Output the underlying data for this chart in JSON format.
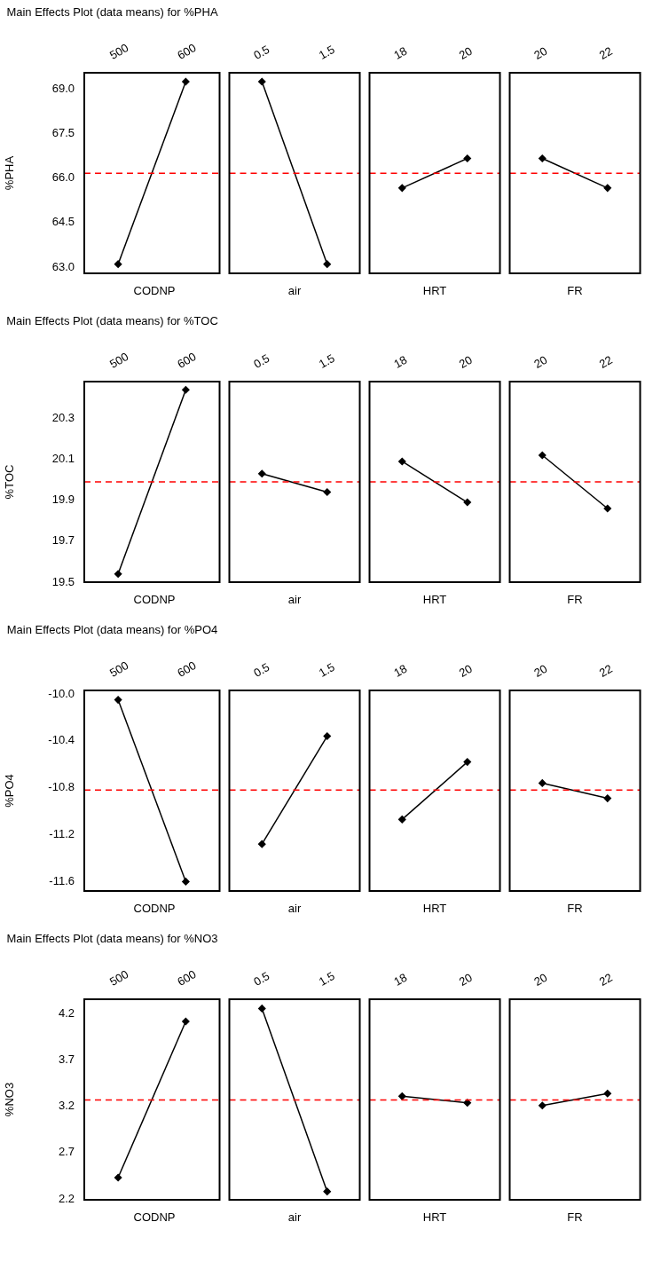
{
  "chart_data": [
    {
      "type": "line",
      "title": "Main Effects Plot (data means) for %PHA",
      "ylabel": "%PHA",
      "xlabel": "CODNP",
      "categories": [
        "500",
        "600"
      ],
      "values": [
        63.1,
        69.26
      ],
      "color": "#000000",
      "marker": "diamond",
      "ylim": [
        62.79,
        69.56
      ],
      "yticks": [
        {
          "value": 63,
          "label": "63.0"
        },
        {
          "value": 64.5,
          "label": "64.5"
        },
        {
          "value": 66,
          "label": "66.0"
        },
        {
          "value": 67.5,
          "label": "67.5"
        },
        {
          "value": 69,
          "label": "69.0"
        }
      ],
      "ref_lines": [
        {
          "axis": "y",
          "value": 66.17,
          "color": "#ff0000",
          "line_style": "dashed"
        }
      ]
    },
    {
      "type": "line",
      "xlabel": "air",
      "categories": [
        "0.5",
        "1.5"
      ],
      "values": [
        69.26,
        63.1
      ],
      "color": "#000000",
      "marker": "diamond",
      "ylim": [
        62.79,
        69.56
      ],
      "tick_labels": "x",
      "ref_lines": [
        {
          "axis": "y",
          "value": 66.17,
          "color": "#ff0000",
          "line_style": "dashed"
        }
      ]
    },
    {
      "type": "line",
      "xlabel": "HRT",
      "categories": [
        "18",
        "20"
      ],
      "values": [
        65.67,
        66.67
      ],
      "color": "#000000",
      "marker": "diamond",
      "ylim": [
        62.79,
        69.56
      ],
      "tick_labels": "x",
      "ref_lines": [
        {
          "axis": "y",
          "value": 66.17,
          "color": "#ff0000",
          "line_style": "dashed"
        }
      ]
    },
    {
      "type": "line",
      "xlabel": "FR",
      "categories": [
        "20",
        "22"
      ],
      "values": [
        66.67,
        65.67
      ],
      "color": "#000000",
      "marker": "diamond",
      "ylim": [
        62.79,
        69.56
      ],
      "tick_labels": "x",
      "ref_lines": [
        {
          "axis": "y",
          "value": 66.17,
          "color": "#ff0000",
          "line_style": "dashed"
        }
      ]
    },
    {
      "type": "line",
      "title": "Main Effects Plot (data means) for %TOC",
      "ylabel": "%TOC",
      "xlabel": "CODNP",
      "categories": [
        "500",
        "600"
      ],
      "values": [
        19.54,
        20.44
      ],
      "color": "#000000",
      "marker": "diamond",
      "ylim": [
        19.5,
        20.48
      ],
      "yticks": [
        {
          "value": 19.5,
          "label": "19.5"
        },
        19.7,
        19.9,
        20.1,
        20.3
      ],
      "ref_lines": [
        {
          "axis": "y",
          "value": 19.99,
          "color": "#ff0000",
          "line_style": "dashed"
        }
      ]
    },
    {
      "type": "line",
      "xlabel": "air",
      "categories": [
        "0.5",
        "1.5"
      ],
      "values": [
        20.03,
        19.94
      ],
      "color": "#000000",
      "marker": "diamond",
      "ylim": [
        19.5,
        20.48
      ],
      "tick_labels": "x",
      "ref_lines": [
        {
          "axis": "y",
          "value": 19.99,
          "color": "#ff0000",
          "line_style": "dashed"
        }
      ]
    },
    {
      "type": "line",
      "xlabel": "HRT",
      "categories": [
        "18",
        "20"
      ],
      "values": [
        20.09,
        19.89
      ],
      "color": "#000000",
      "marker": "diamond",
      "ylim": [
        19.5,
        20.48
      ],
      "tick_labels": "x",
      "ref_lines": [
        {
          "axis": "y",
          "value": 19.99,
          "color": "#ff0000",
          "line_style": "dashed"
        }
      ]
    },
    {
      "type": "line",
      "xlabel": "FR",
      "categories": [
        "20",
        "22"
      ],
      "values": [
        20.12,
        19.86
      ],
      "color": "#000000",
      "marker": "diamond",
      "ylim": [
        19.5,
        20.48
      ],
      "tick_labels": "x",
      "ref_lines": [
        {
          "axis": "y",
          "value": 19.99,
          "color": "#ff0000",
          "line_style": "dashed"
        }
      ]
    },
    {
      "type": "line",
      "title": "Main Effects Plot (data means) for %PO4",
      "ylabel": "%PO4",
      "xlabel": "CODNP",
      "categories": [
        "500",
        "600"
      ],
      "values": [
        -10.05,
        -11.6
      ],
      "color": "#000000",
      "marker": "diamond",
      "ylim": [
        -11.68,
        -9.97
      ],
      "yticks": [
        -11.6,
        -11.2,
        -10.8,
        -10.4,
        {
          "value": -10,
          "label": "-10.0"
        }
      ],
      "ref_lines": [
        {
          "axis": "y",
          "value": -10.82,
          "color": "#ff0000",
          "line_style": "dashed"
        }
      ]
    },
    {
      "type": "line",
      "xlabel": "air",
      "categories": [
        "0.5",
        "1.5"
      ],
      "values": [
        -11.28,
        -10.36
      ],
      "color": "#000000",
      "marker": "diamond",
      "ylim": [
        -11.68,
        -9.97
      ],
      "tick_labels": "x",
      "ref_lines": [
        {
          "axis": "y",
          "value": -10.82,
          "color": "#ff0000",
          "line_style": "dashed"
        }
      ]
    },
    {
      "type": "line",
      "xlabel": "HRT",
      "categories": [
        "18",
        "20"
      ],
      "values": [
        -11.07,
        -10.58
      ],
      "color": "#000000",
      "marker": "diamond",
      "ylim": [
        -11.68,
        -9.97
      ],
      "tick_labels": "x",
      "ref_lines": [
        {
          "axis": "y",
          "value": -10.82,
          "color": "#ff0000",
          "line_style": "dashed"
        }
      ]
    },
    {
      "type": "line",
      "xlabel": "FR",
      "categories": [
        "20",
        "22"
      ],
      "values": [
        -10.76,
        -10.89
      ],
      "color": "#000000",
      "marker": "diamond",
      "ylim": [
        -11.68,
        -9.97
      ],
      "tick_labels": "x",
      "ref_lines": [
        {
          "axis": "y",
          "value": -10.82,
          "color": "#ff0000",
          "line_style": "dashed"
        }
      ]
    },
    {
      "type": "line",
      "title": "Main Effects Plot (data means) for %NO3",
      "ylabel": "%NO3",
      "xlabel": "CODNP",
      "categories": [
        "500",
        "600"
      ],
      "values": [
        2.43,
        4.12
      ],
      "color": "#000000",
      "marker": "diamond",
      "ylim": [
        2.19,
        4.36
      ],
      "yticks": [
        2.2,
        2.7,
        3.2,
        3.7,
        4.2
      ],
      "ref_lines": [
        {
          "axis": "y",
          "value": 3.27,
          "color": "#ff0000",
          "line_style": "dashed"
        }
      ]
    },
    {
      "type": "line",
      "xlabel": "air",
      "categories": [
        "0.5",
        "1.5"
      ],
      "values": [
        4.26,
        2.28
      ],
      "color": "#000000",
      "marker": "diamond",
      "ylim": [
        2.19,
        4.36
      ],
      "tick_labels": "x",
      "ref_lines": [
        {
          "axis": "y",
          "value": 3.27,
          "color": "#ff0000",
          "line_style": "dashed"
        }
      ]
    },
    {
      "type": "line",
      "xlabel": "HRT",
      "categories": [
        "18",
        "20"
      ],
      "values": [
        3.31,
        3.24
      ],
      "color": "#000000",
      "marker": "diamond",
      "ylim": [
        2.19,
        4.36
      ],
      "tick_labels": "x",
      "ref_lines": [
        {
          "axis": "y",
          "value": 3.27,
          "color": "#ff0000",
          "line_style": "dashed"
        }
      ]
    },
    {
      "type": "line",
      "xlabel": "FR",
      "categories": [
        "20",
        "22"
      ],
      "values": [
        3.21,
        3.34
      ],
      "color": "#000000",
      "marker": "diamond",
      "ylim": [
        2.19,
        4.36
      ],
      "tick_labels": "x",
      "ref_lines": [
        {
          "axis": "y",
          "value": 3.27,
          "color": "#ff0000",
          "line_style": "dashed"
        }
      ]
    }
  ]
}
